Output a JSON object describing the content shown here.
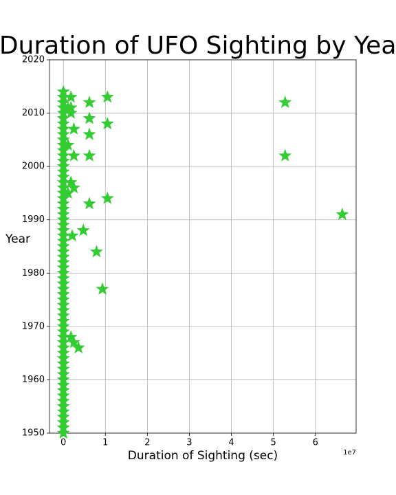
{
  "chart_data": {
    "type": "scatter",
    "title": "Duration of UFO Sighting by Year",
    "x_label": "Duration of Sighting (sec)",
    "y_label": "Year",
    "x_offset_label": "1e7",
    "color": "#33cc33",
    "marker": "star",
    "grid": true,
    "xlim": [
      -3300000,
      69700000
    ],
    "ylim": [
      1950,
      2020
    ],
    "xticks": [
      0,
      {
        "value": 10000000,
        "label": "1"
      },
      {
        "value": 20000000,
        "label": "2"
      },
      {
        "value": 30000000,
        "label": "3"
      },
      {
        "value": 40000000,
        "label": "4"
      },
      {
        "value": 50000000,
        "label": "5"
      },
      {
        "value": 60000000,
        "label": "6"
      }
    ],
    "yticks": [
      1950,
      1960,
      1970,
      1980,
      1990,
      2000,
      2010,
      2020
    ],
    "x": [
      0,
      0,
      0,
      0,
      0,
      0,
      0,
      0,
      0,
      0,
      0,
      0,
      0,
      0,
      0,
      0,
      0,
      0,
      0,
      0,
      0,
      0,
      0,
      0,
      0,
      0,
      0,
      0,
      0,
      0,
      0,
      0,
      0,
      0,
      0,
      0,
      0,
      0,
      0,
      0,
      0,
      0,
      0,
      0,
      0,
      0,
      0,
      0,
      0,
      0,
      0,
      0,
      0,
      0,
      0,
      0,
      0,
      0,
      0,
      0,
      0,
      0,
      0,
      0,
      0,
      1800000,
      6200000,
      10500000,
      6200000,
      10500000,
      6200000,
      2500000,
      1100000,
      2500000,
      6200000,
      52800000,
      52800000,
      66400000,
      10500000,
      6200000,
      1800000,
      2500000,
      1100000,
      4750000,
      2100000,
      7900000,
      9300000,
      1800000,
      2500000,
      3600000,
      1800000,
      1100000,
      1800000
    ],
    "y": [
      1950,
      1951,
      1952,
      1953,
      1954,
      1955,
      1956,
      1957,
      1958,
      1959,
      1960,
      1961,
      1962,
      1963,
      1964,
      1965,
      1966,
      1967,
      1968,
      1969,
      1970,
      1971,
      1972,
      1973,
      1974,
      1975,
      1976,
      1977,
      1978,
      1979,
      1980,
      1981,
      1982,
      1983,
      1984,
      1985,
      1986,
      1987,
      1988,
      1989,
      1990,
      1991,
      1992,
      1993,
      1994,
      1995,
      1996,
      1997,
      1998,
      1999,
      2000,
      2001,
      2002,
      2003,
      2004,
      2005,
      2006,
      2007,
      2008,
      2009,
      2010,
      2011,
      2012,
      2013,
      2014,
      2013,
      2012,
      2013,
      2009,
      2008,
      2006,
      2007,
      2004,
      2002,
      2002,
      2012,
      2002,
      1991,
      1994,
      1993,
      1997,
      1996,
      1995,
      1988,
      1987,
      1984,
      1977,
      1968,
      1967,
      1966,
      2011,
      2011,
      2010
    ]
  }
}
